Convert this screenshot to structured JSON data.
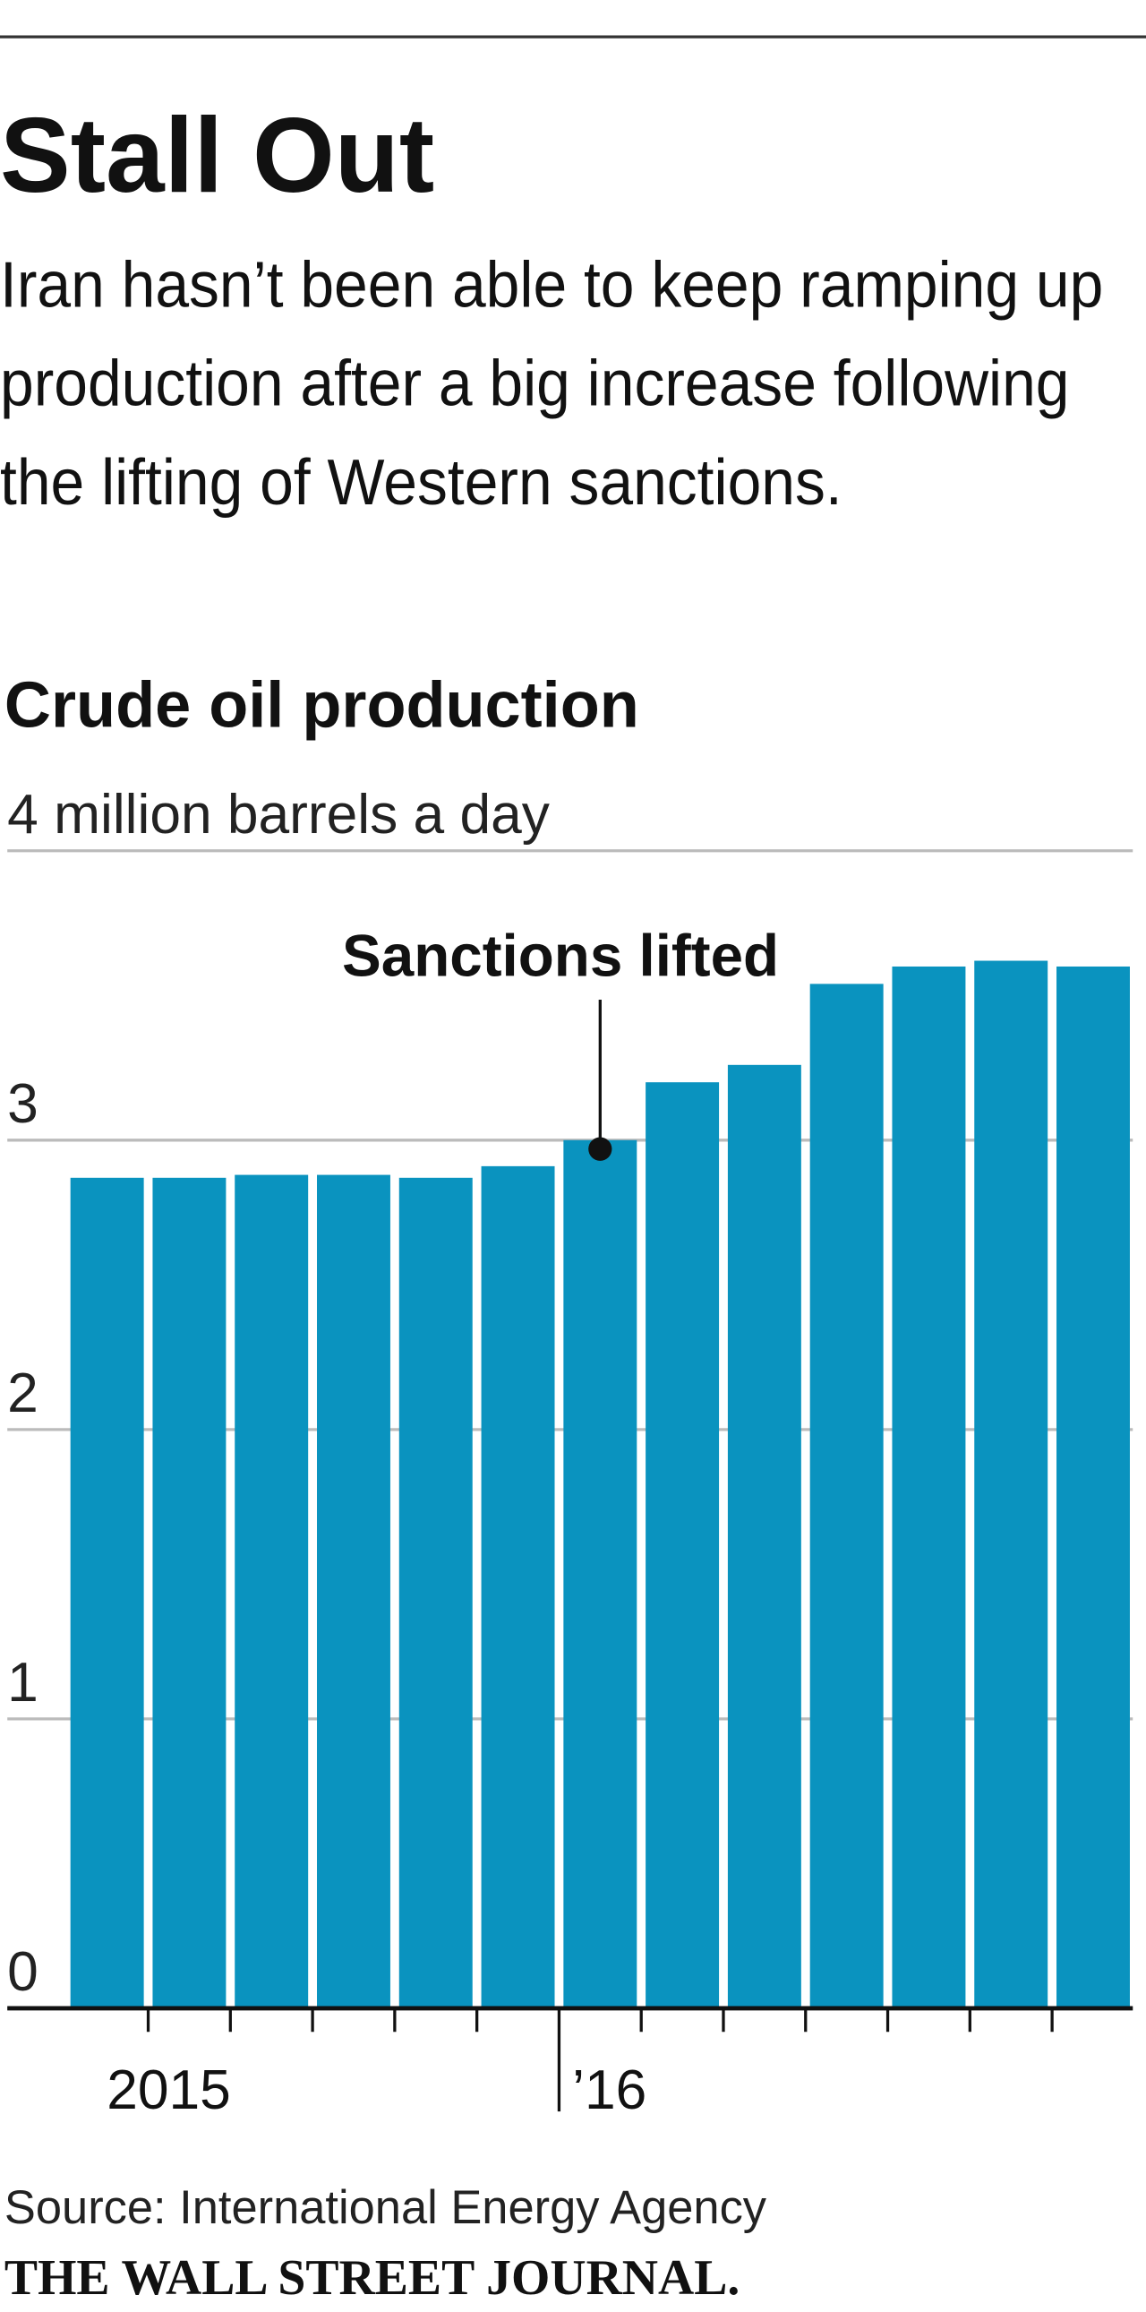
{
  "chart_data": {
    "type": "bar",
    "title": "Stall Out",
    "subtitle": "Iran hasn’t been able to keep ramping up production after a big increase following the lifting of Western sanctions.",
    "chart_title": "Crude oil production",
    "categories": [
      null,
      "2015",
      null,
      null,
      null,
      null,
      "’16",
      null,
      null,
      null,
      null,
      null,
      null
    ],
    "values": [
      2.87,
      2.87,
      2.88,
      2.88,
      2.87,
      2.91,
      3.0,
      3.2,
      3.26,
      3.54,
      3.6,
      3.62,
      3.6
    ],
    "color": "#0a93bf",
    "ylim": [
      0,
      4
    ],
    "yticks": [
      0,
      1,
      2,
      3,
      {
        "value": 4,
        "label": "4 million barrels a day"
      }
    ],
    "grid": true,
    "annotation": {
      "text": "Sanctions lifted",
      "index": 6
    },
    "source": "Source: International Energy Agency",
    "credit": "THE WALL STREET JOURNAL."
  }
}
